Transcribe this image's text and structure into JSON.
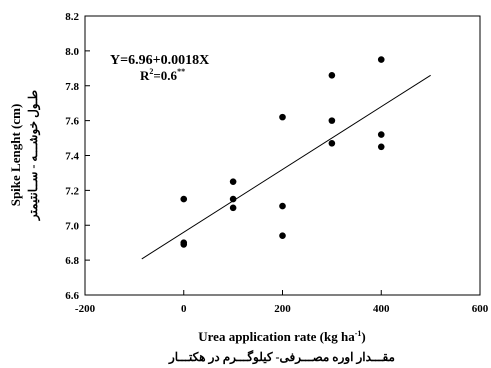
{
  "chart_data": {
    "type": "scatter",
    "title": "",
    "xlabel": "Urea application rate (kg ha",
    "xlabel_sup": "-1",
    "xlabel_close": ")",
    "xlabel_persian": "مقـــدار اوره مصـــرفی- کیلوگـــرم در هکتـــار",
    "ylabel": "Spike Lenght (cm)",
    "ylabel_persian": "طـول خوشـــه - ســانتیمتر",
    "xlim": [
      -200,
      600
    ],
    "ylim": [
      6.6,
      8.2
    ],
    "xticks": [
      "-200",
      "0",
      "200",
      "400",
      "600"
    ],
    "xtick_values": [
      -200,
      0,
      200,
      400,
      600
    ],
    "yticks": [
      "6.6",
      "6.8",
      "7.0",
      "7.2",
      "7.4",
      "7.6",
      "7.8",
      "8.0",
      "8.2"
    ],
    "ytick_values": [
      6.6,
      6.8,
      7.0,
      7.2,
      7.4,
      7.6,
      7.8,
      8.0,
      8.2
    ],
    "points": [
      {
        "x": 0,
        "y": 7.15
      },
      {
        "x": 0,
        "y": 6.9
      },
      {
        "x": 0,
        "y": 6.89
      },
      {
        "x": 100,
        "y": 7.25
      },
      {
        "x": 100,
        "y": 7.15
      },
      {
        "x": 100,
        "y": 7.1
      },
      {
        "x": 200,
        "y": 7.62
      },
      {
        "x": 200,
        "y": 7.11
      },
      {
        "x": 200,
        "y": 6.94
      },
      {
        "x": 300,
        "y": 7.86
      },
      {
        "x": 300,
        "y": 7.6
      },
      {
        "x": 300,
        "y": 7.47
      },
      {
        "x": 400,
        "y": 7.95
      },
      {
        "x": 400,
        "y": 7.52
      },
      {
        "x": 400,
        "y": 7.45
      }
    ],
    "fit_line": {
      "x_start": -85,
      "x_end": 500,
      "intercept": 6.96,
      "slope": 0.0018
    },
    "equation": "Y=6.96+0.0018X",
    "r2_prefix": "R",
    "r2_sup": "2",
    "r2_value": "=0.6",
    "r2_stars": "**",
    "grid": false,
    "legend": "none"
  }
}
